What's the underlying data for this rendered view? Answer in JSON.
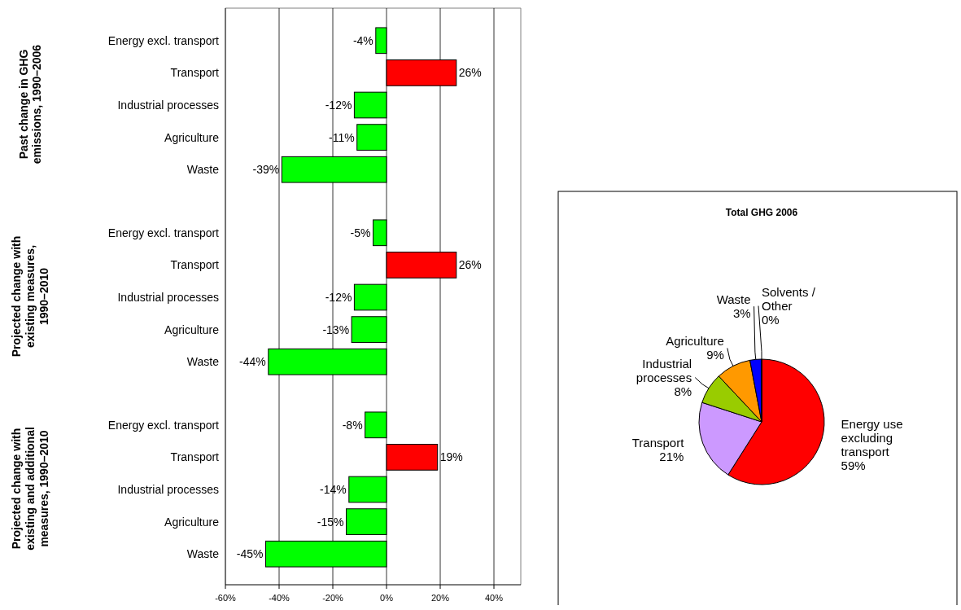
{
  "chart_data": [
    {
      "type": "bar",
      "orientation": "horizontal",
      "ylabel": "Past change in GHG emissions, 1990–2006",
      "categories": [
        "Energy excl. transport",
        "Transport",
        "Industrial processes",
        "Agriculture",
        "Waste"
      ],
      "values": [
        -4,
        26,
        -12,
        -11,
        -39
      ],
      "colors": [
        "#00ff00",
        "#ff0000",
        "#00ff00",
        "#00ff00",
        "#00ff00"
      ],
      "value_labels": [
        "-4%",
        "26%",
        "-12%",
        "-11%",
        "-39%"
      ],
      "xlim": [
        -60,
        50
      ],
      "xticks": [
        {
          "value": -60,
          "label": null
        },
        {
          "value": -40,
          "label": null
        },
        {
          "value": -20,
          "label": null
        },
        {
          "value": 0,
          "label": null
        },
        {
          "value": 20,
          "label": null
        },
        {
          "value": 40,
          "label": null
        }
      ],
      "grid": "x",
      "tick_labels": "y"
    },
    {
      "type": "bar",
      "orientation": "horizontal",
      "ylabel": "Projected change with existing measures, 1990–2010",
      "categories": [
        "Energy excl. transport",
        "Transport",
        "Industrial processes",
        "Agriculture",
        "Waste"
      ],
      "values": [
        -5,
        26,
        -12,
        -13,
        -44
      ],
      "colors": [
        "#00ff00",
        "#ff0000",
        "#00ff00",
        "#00ff00",
        "#00ff00"
      ],
      "value_labels": [
        "-5%",
        "26%",
        "-12%",
        "-13%",
        "-44%"
      ],
      "xlim": [
        -60,
        50
      ],
      "xticks": [
        {
          "value": -60,
          "label": null
        },
        {
          "value": -40,
          "label": null
        },
        {
          "value": -20,
          "label": null
        },
        {
          "value": 0,
          "label": null
        },
        {
          "value": 20,
          "label": null
        },
        {
          "value": 40,
          "label": null
        }
      ],
      "grid": "x",
      "tick_labels": "y"
    },
    {
      "type": "bar",
      "orientation": "horizontal",
      "ylabel": "Projected change with existing and additional measures, 1990–2010",
      "categories": [
        "Energy excl. transport",
        "Transport",
        "Industrial processes",
        "Agriculture",
        "Waste"
      ],
      "values": [
        -8,
        19,
        -14,
        -15,
        -45
      ],
      "colors": [
        "#00ff00",
        "#ff0000",
        "#00ff00",
        "#00ff00",
        "#00ff00"
      ],
      "value_labels": [
        "-8%",
        "19%",
        "-14%",
        "-15%",
        "-45%"
      ],
      "xlim": [
        -60,
        50
      ],
      "xticks": [
        {
          "value": -60,
          "label": "-60%"
        },
        {
          "value": -40,
          "label": "-40%"
        },
        {
          "value": -20,
          "label": "-20%"
        },
        {
          "value": 0,
          "label": "0%"
        },
        {
          "value": 20,
          "label": "20%"
        },
        {
          "value": 40,
          "label": "40%"
        }
      ],
      "grid": "x"
    },
    {
      "type": "pie",
      "title": "Total GHG 2006",
      "categories": [
        "Energy use excluding transport",
        "Transport",
        "Industrial processes",
        "Agriculture",
        "Waste",
        "Solvents / Other"
      ],
      "values": [
        59,
        21,
        8,
        9,
        3,
        0
      ],
      "colors": [
        "#ff0000",
        "#cc99ff",
        "#99cc00",
        "#ff9900",
        "#0000ff",
        "#ffff00"
      ],
      "value_labels": [
        "59%",
        "21%",
        "8%",
        "9%",
        "3%",
        "0%"
      ]
    }
  ]
}
